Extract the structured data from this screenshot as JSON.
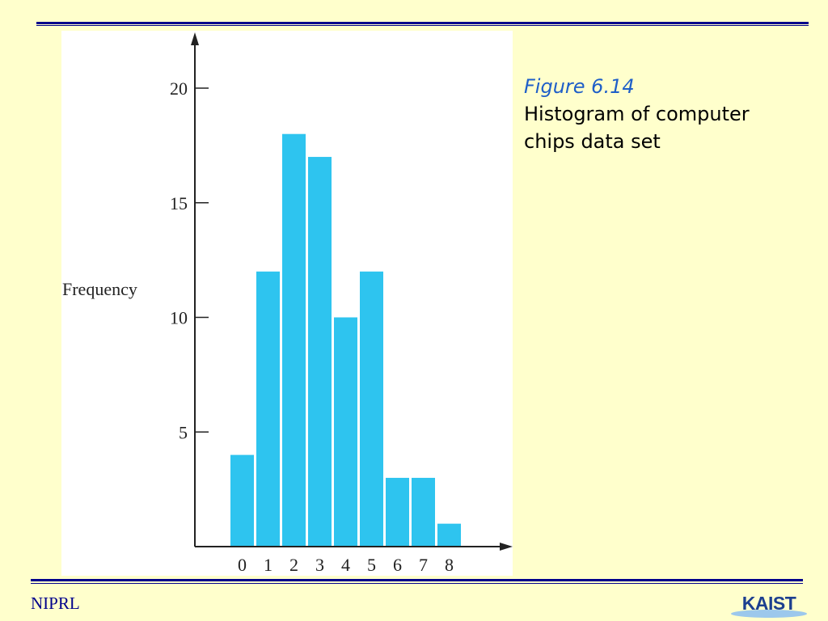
{
  "slide": {
    "caption_figure": "Figure 6.14",
    "caption_text": "Histogram of computer chips data set",
    "footer_org": "NIPRL",
    "logo_text": "KAIST"
  },
  "colors": {
    "background": "#ffffcc",
    "rule": "#00008b",
    "bar": "#2ec4ef",
    "caption_figure": "#1f5fc8",
    "logo_blue": "#1d3f8f"
  },
  "chart_data": {
    "type": "bar",
    "title": "",
    "xlabel": "",
    "ylabel": "Frequency",
    "categories": [
      "0",
      "1",
      "2",
      "3",
      "4",
      "5",
      "6",
      "7",
      "8"
    ],
    "values": [
      4,
      12,
      18,
      17,
      10,
      12,
      3,
      3,
      1
    ],
    "ylim": [
      0,
      20
    ],
    "yticks": [
      5,
      10,
      15,
      20
    ],
    "grid": false,
    "legend": "none"
  }
}
